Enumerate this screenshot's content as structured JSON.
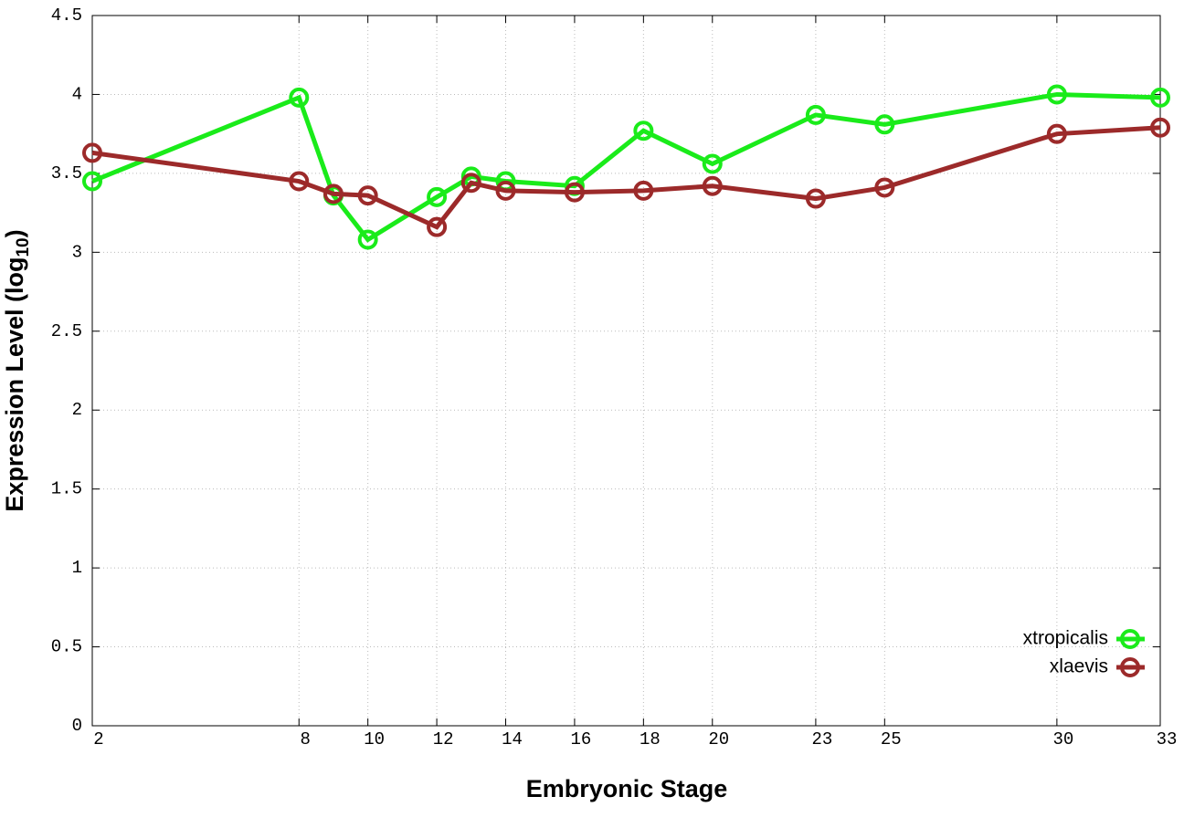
{
  "chart_data": {
    "type": "line",
    "x_label": "Embryonic Stage",
    "y_label": [
      "Expression Level (log",
      "10",
      ")"
    ],
    "x": [
      2,
      8,
      9,
      10,
      12,
      13,
      14,
      16,
      18,
      20,
      23,
      25,
      30,
      33
    ],
    "series": [
      {
        "name": "xtropicalis",
        "color": "#1aeb1a",
        "values": [
          3.45,
          3.98,
          3.36,
          3.08,
          3.35,
          3.48,
          3.45,
          3.42,
          3.77,
          3.56,
          3.87,
          3.81,
          4.0,
          3.98
        ]
      },
      {
        "name": "xlaevis",
        "color": "#9c2a2a",
        "values": [
          3.63,
          3.45,
          3.37,
          3.36,
          3.16,
          3.44,
          3.39,
          3.38,
          3.39,
          3.42,
          3.34,
          3.41,
          3.75,
          3.79
        ]
      }
    ],
    "xlim": [
      2,
      33
    ],
    "xticks": [
      2,
      8,
      10,
      12,
      14,
      16,
      18,
      20,
      23,
      25,
      30,
      33
    ],
    "ylim": [
      0,
      4.5
    ],
    "yticks": [
      0,
      0.5,
      1,
      1.5,
      2,
      2.5,
      3,
      3.5,
      4,
      4.5
    ],
    "grid": true,
    "legend": "lower right"
  }
}
